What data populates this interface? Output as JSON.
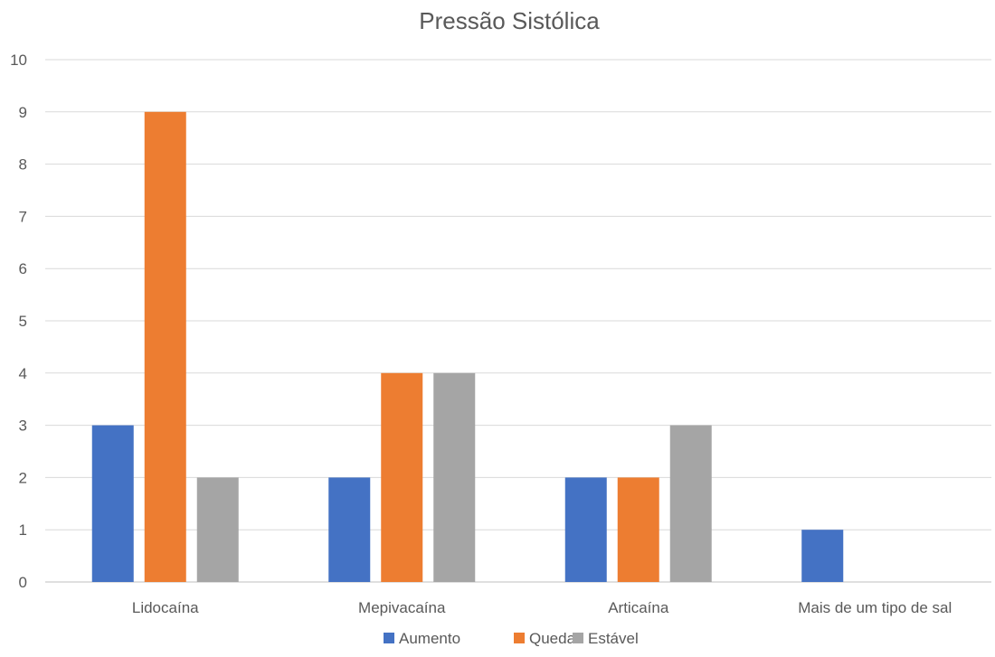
{
  "chart_data": {
    "type": "bar",
    "title": "Pressão Sistólica",
    "xlabel": "",
    "ylabel": "",
    "categories": [
      "Lidocaína",
      "Mepivacaína",
      "Articaína",
      "Mais de um tipo de sal"
    ],
    "series": [
      {
        "name": "Aumento",
        "values": [
          3,
          2,
          2,
          1
        ],
        "color": "#4472C4"
      },
      {
        "name": "Queda",
        "values": [
          9,
          4,
          2,
          0
        ],
        "color": "#ED7D31"
      },
      {
        "name": "Estável",
        "values": [
          2,
          4,
          3,
          0
        ],
        "color": "#A5A5A5"
      }
    ],
    "ylim": [
      0,
      10
    ],
    "yticks": [
      "0",
      "1",
      "2",
      "3",
      "4",
      "5",
      "6",
      "7",
      "8",
      "9",
      "10"
    ],
    "grid": true,
    "legend": "bottom"
  }
}
